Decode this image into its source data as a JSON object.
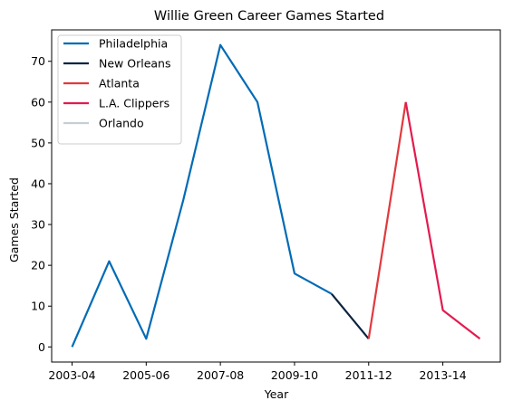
{
  "chart_data": {
    "type": "line",
    "title": "Willie Green Career Games Started",
    "xlabel": "Year",
    "ylabel": "Games Started",
    "x_categories": [
      "2003-04",
      "2004-05",
      "2005-06",
      "2006-07",
      "2007-08",
      "2008-09",
      "2009-10",
      "2010-11",
      "2011-12",
      "2012-13",
      "2013-14",
      "2014-15"
    ],
    "x_tick_labels": [
      "2003-04",
      "2005-06",
      "2007-08",
      "2009-10",
      "2011-12",
      "2013-14"
    ],
    "y_ticks": [
      0,
      10,
      20,
      30,
      40,
      50,
      60,
      70
    ],
    "ylim": [
      -3.7,
      77.7
    ],
    "grid": false,
    "legend_position": "top-left",
    "series": [
      {
        "name": "Philadelphia",
        "color": "#006BB6",
        "x": [
          "2003-04",
          "2004-05",
          "2005-06",
          "2006-07",
          "2007-08",
          "2008-09",
          "2009-10",
          "2010-11"
        ],
        "values": [
          0,
          21,
          2,
          36,
          74,
          60,
          18,
          13
        ]
      },
      {
        "name": "New Orleans",
        "color": "#0C2340",
        "x": [
          "2010-11",
          "2011-12"
        ],
        "values": [
          13,
          2
        ]
      },
      {
        "name": "Atlanta",
        "color": "#E03A3E",
        "x": [
          "2011-12",
          "2012-13"
        ],
        "values": [
          2,
          60
        ]
      },
      {
        "name": "L.A. Clippers",
        "color": "#E31B4F",
        "x": [
          "2012-13",
          "2013-14",
          "2014-15"
        ],
        "values": [
          60,
          9,
          2
        ]
      },
      {
        "name": "Orlando",
        "color": "#C4CED4",
        "x": [],
        "values": []
      }
    ]
  }
}
